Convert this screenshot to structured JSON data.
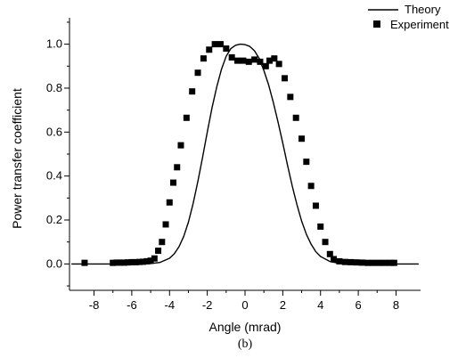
{
  "chart_data": {
    "type": "scatter",
    "title": "",
    "caption": "(b)",
    "xlabel": "Angle (mrad)",
    "ylabel": "Power transfer coefficient",
    "xlim": [
      -9.3,
      9.3
    ],
    "ylim": [
      -0.12,
      1.12
    ],
    "x_ticks": [
      -8,
      -6,
      -4,
      -2,
      0,
      2,
      4,
      6,
      8
    ],
    "y_ticks": [
      0.0,
      0.2,
      0.4,
      0.6,
      0.8,
      1.0
    ],
    "y_tick_labels": [
      "0.0",
      "0.2",
      "0.4",
      "0.6",
      "0.8",
      "1.0"
    ],
    "legend_position": "top-right, outside plot",
    "series": [
      {
        "name": "Theory",
        "style": "line",
        "color": "#000000",
        "points": [
          [
            -9.2,
            0.0
          ],
          [
            -6.0,
            0.0
          ],
          [
            -5.0,
            0.002
          ],
          [
            -4.5,
            0.007
          ],
          [
            -4.0,
            0.026
          ],
          [
            -3.75,
            0.046
          ],
          [
            -3.5,
            0.078
          ],
          [
            -3.25,
            0.125
          ],
          [
            -3.0,
            0.19
          ],
          [
            -2.75,
            0.275
          ],
          [
            -2.5,
            0.375
          ],
          [
            -2.25,
            0.485
          ],
          [
            -2.0,
            0.6
          ],
          [
            -1.75,
            0.71
          ],
          [
            -1.5,
            0.805
          ],
          [
            -1.25,
            0.885
          ],
          [
            -1.0,
            0.945
          ],
          [
            -0.75,
            0.98
          ],
          [
            -0.5,
            0.995
          ],
          [
            -0.25,
            1.0
          ],
          [
            0.0,
            0.998
          ],
          [
            0.25,
            0.99
          ],
          [
            0.5,
            0.97
          ],
          [
            0.75,
            0.935
          ],
          [
            1.0,
            0.88
          ],
          [
            1.25,
            0.815
          ],
          [
            1.5,
            0.735
          ],
          [
            1.75,
            0.645
          ],
          [
            2.0,
            0.55
          ],
          [
            2.25,
            0.45
          ],
          [
            2.5,
            0.355
          ],
          [
            2.75,
            0.27
          ],
          [
            3.0,
            0.195
          ],
          [
            3.25,
            0.135
          ],
          [
            3.5,
            0.09
          ],
          [
            3.75,
            0.056
          ],
          [
            4.0,
            0.034
          ],
          [
            4.5,
            0.011
          ],
          [
            5.0,
            0.003
          ],
          [
            6.0,
            0.0
          ],
          [
            9.2,
            0.0
          ]
        ]
      },
      {
        "name": "Experiment",
        "style": "square-markers",
        "color": "#000000",
        "points": [
          [
            -8.5,
            0.005
          ],
          [
            -7.0,
            0.005
          ],
          [
            -6.8,
            0.006
          ],
          [
            -6.6,
            0.006
          ],
          [
            -6.4,
            0.006
          ],
          [
            -6.2,
            0.007
          ],
          [
            -6.0,
            0.008
          ],
          [
            -5.8,
            0.008
          ],
          [
            -5.6,
            0.009
          ],
          [
            -5.4,
            0.01
          ],
          [
            -5.2,
            0.012
          ],
          [
            -5.0,
            0.015
          ],
          [
            -4.8,
            0.025
          ],
          [
            -4.6,
            0.06
          ],
          [
            -4.4,
            0.1
          ],
          [
            -4.2,
            0.18
          ],
          [
            -4.0,
            0.28
          ],
          [
            -3.8,
            0.37
          ],
          [
            -3.6,
            0.44
          ],
          [
            -3.4,
            0.54
          ],
          [
            -3.1,
            0.665
          ],
          [
            -2.8,
            0.785
          ],
          [
            -2.5,
            0.87
          ],
          [
            -2.2,
            0.935
          ],
          [
            -1.9,
            0.975
          ],
          [
            -1.6,
            1.0
          ],
          [
            -1.3,
            1.0
          ],
          [
            -1.0,
            0.98
          ],
          [
            -0.7,
            0.94
          ],
          [
            -0.4,
            0.925
          ],
          [
            -0.1,
            0.925
          ],
          [
            0.2,
            0.92
          ],
          [
            0.5,
            0.93
          ],
          [
            0.8,
            0.92
          ],
          [
            1.1,
            0.9
          ],
          [
            1.3,
            0.925
          ],
          [
            1.55,
            0.935
          ],
          [
            1.8,
            0.91
          ],
          [
            2.1,
            0.845
          ],
          [
            2.4,
            0.76
          ],
          [
            2.7,
            0.665
          ],
          [
            3.0,
            0.57
          ],
          [
            3.25,
            0.465
          ],
          [
            3.5,
            0.355
          ],
          [
            3.75,
            0.265
          ],
          [
            4.0,
            0.17
          ],
          [
            4.25,
            0.1
          ],
          [
            4.5,
            0.045
          ],
          [
            4.7,
            0.022
          ],
          [
            5.0,
            0.012
          ],
          [
            5.3,
            0.009
          ],
          [
            5.6,
            0.008
          ],
          [
            5.9,
            0.007
          ],
          [
            6.2,
            0.006
          ],
          [
            6.5,
            0.005
          ],
          [
            6.8,
            0.005
          ],
          [
            7.1,
            0.005
          ],
          [
            7.4,
            0.005
          ],
          [
            7.7,
            0.005
          ],
          [
            7.9,
            0.005
          ]
        ]
      }
    ]
  }
}
